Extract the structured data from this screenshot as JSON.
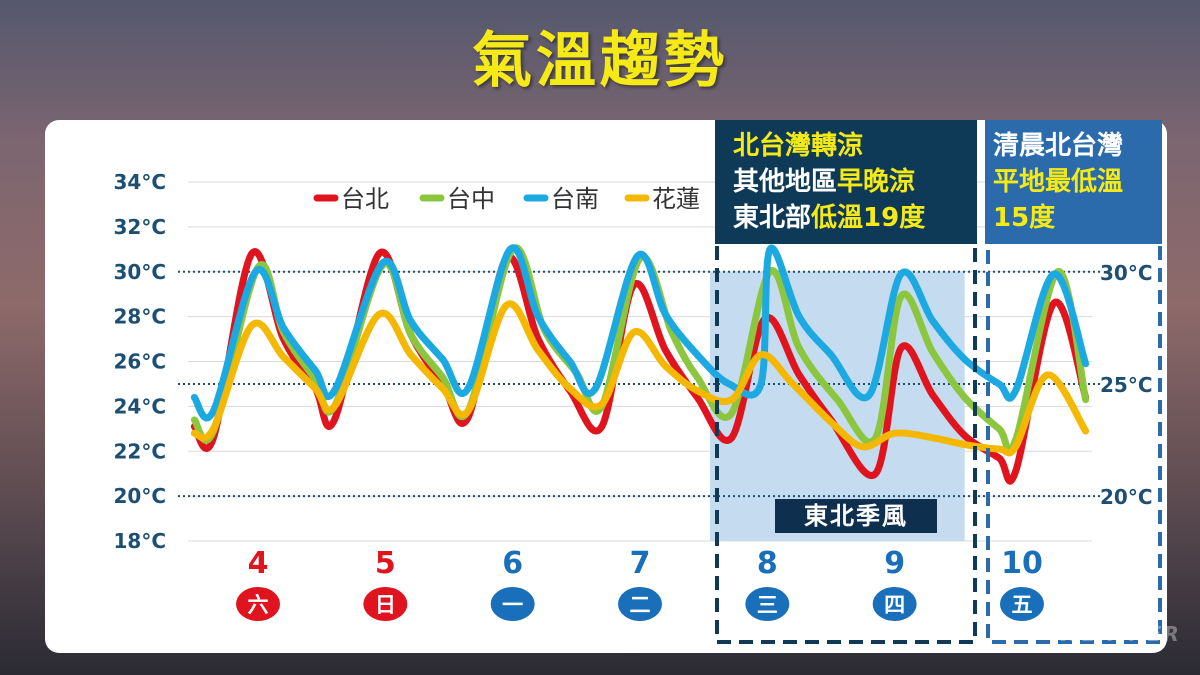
{
  "title": "氣溫趨勢",
  "chart_data": {
    "type": "line",
    "y_ticks": [
      "34°C",
      "32°C",
      "30°C",
      "28°C",
      "26°C",
      "24°C",
      "22°C",
      "20°C",
      "18°C"
    ],
    "ylim": [
      18,
      34
    ],
    "ref_lines": [
      {
        "value": 30,
        "label": "30°C"
      },
      {
        "value": 25,
        "label": "25°C"
      },
      {
        "value": 20,
        "label": "20°C"
      }
    ],
    "days": [
      {
        "date": "4",
        "weekday": "六",
        "weekend": true
      },
      {
        "date": "5",
        "weekday": "日",
        "weekend": true
      },
      {
        "date": "6",
        "weekday": "一",
        "weekend": false
      },
      {
        "date": "7",
        "weekday": "二",
        "weekend": false
      },
      {
        "date": "8",
        "weekday": "三",
        "weekend": false
      },
      {
        "date": "9",
        "weekday": "四",
        "weekend": false
      },
      {
        "date": "10",
        "weekday": "五",
        "weekend": false
      }
    ],
    "x_positions": [
      0,
      1,
      2,
      3,
      4,
      5,
      6
    ],
    "x_range": [
      -0.55,
      6.55
    ],
    "series": [
      {
        "name": "台北",
        "color": "#e0141e",
        "points": [
          [
            -0.5,
            23.1
          ],
          [
            -0.35,
            22.6
          ],
          [
            -0.05,
            30.8
          ],
          [
            0.2,
            27.0
          ],
          [
            0.45,
            24.8
          ],
          [
            0.6,
            23.4
          ],
          [
            0.95,
            30.8
          ],
          [
            1.2,
            27.2
          ],
          [
            1.45,
            25.0
          ],
          [
            1.65,
            23.5
          ],
          [
            1.95,
            30.6
          ],
          [
            2.2,
            27.0
          ],
          [
            2.45,
            24.7
          ],
          [
            2.7,
            23.1
          ],
          [
            2.95,
            29.4
          ],
          [
            3.2,
            26.5
          ],
          [
            3.45,
            24.4
          ],
          [
            3.72,
            22.6
          ],
          [
            3.98,
            27.9
          ],
          [
            4.25,
            25.4
          ],
          [
            4.5,
            23.4
          ],
          [
            4.85,
            21.0
          ],
          [
            5.05,
            26.6
          ],
          [
            5.3,
            24.5
          ],
          [
            5.55,
            22.7
          ],
          [
            5.82,
            21.7
          ],
          [
            5.95,
            21.1
          ],
          [
            6.25,
            28.6
          ],
          [
            6.5,
            24.4
          ]
        ]
      },
      {
        "name": "台中",
        "color": "#8cc63f",
        "points": [
          [
            -0.5,
            23.4
          ],
          [
            -0.35,
            22.9
          ],
          [
            0.0,
            30.2
          ],
          [
            0.2,
            27.3
          ],
          [
            0.45,
            25.2
          ],
          [
            0.6,
            24.0
          ],
          [
            0.98,
            30.3
          ],
          [
            1.2,
            27.2
          ],
          [
            1.45,
            25.3
          ],
          [
            1.65,
            23.8
          ],
          [
            2.0,
            31.0
          ],
          [
            2.25,
            27.4
          ],
          [
            2.5,
            25.5
          ],
          [
            2.7,
            24.0
          ],
          [
            3.0,
            30.6
          ],
          [
            3.25,
            27.3
          ],
          [
            3.45,
            25.3
          ],
          [
            3.72,
            23.7
          ],
          [
            4.02,
            30.0
          ],
          [
            4.25,
            26.6
          ],
          [
            4.55,
            24.3
          ],
          [
            4.85,
            22.6
          ],
          [
            5.05,
            28.9
          ],
          [
            5.3,
            26.4
          ],
          [
            5.55,
            24.4
          ],
          [
            5.82,
            23.0
          ],
          [
            5.95,
            22.5
          ],
          [
            6.28,
            30.0
          ],
          [
            6.5,
            24.3
          ]
        ]
      },
      {
        "name": "台南",
        "color": "#1ca9e1",
        "points": [
          [
            -0.5,
            24.4
          ],
          [
            -0.35,
            23.8
          ],
          [
            -0.02,
            30.0
          ],
          [
            0.2,
            27.5
          ],
          [
            0.45,
            25.6
          ],
          [
            0.6,
            24.7
          ],
          [
            0.98,
            30.4
          ],
          [
            1.2,
            27.8
          ],
          [
            1.45,
            26.1
          ],
          [
            1.65,
            24.8
          ],
          [
            1.98,
            31.0
          ],
          [
            2.2,
            28.0
          ],
          [
            2.45,
            26.0
          ],
          [
            2.65,
            24.8
          ],
          [
            2.98,
            30.7
          ],
          [
            3.2,
            28.1
          ],
          [
            3.45,
            26.3
          ],
          [
            3.7,
            25.0
          ],
          [
            3.95,
            25.0
          ],
          [
            4.02,
            31.0
          ],
          [
            4.25,
            28.0
          ],
          [
            4.5,
            26.3
          ],
          [
            4.8,
            24.5
          ],
          [
            5.05,
            29.9
          ],
          [
            5.3,
            27.8
          ],
          [
            5.55,
            26.1
          ],
          [
            5.82,
            25.0
          ],
          [
            5.95,
            24.7
          ],
          [
            6.25,
            29.9
          ],
          [
            6.5,
            25.9
          ]
        ]
      },
      {
        "name": "花蓮",
        "color": "#f5b800",
        "points": [
          [
            -0.5,
            22.8
          ],
          [
            -0.35,
            23.0
          ],
          [
            -0.05,
            27.6
          ],
          [
            0.2,
            26.2
          ],
          [
            0.45,
            24.8
          ],
          [
            0.6,
            24.0
          ],
          [
            0.95,
            28.1
          ],
          [
            1.2,
            26.3
          ],
          [
            1.45,
            24.8
          ],
          [
            1.65,
            23.8
          ],
          [
            1.95,
            28.5
          ],
          [
            2.2,
            26.5
          ],
          [
            2.45,
            24.8
          ],
          [
            2.7,
            24.1
          ],
          [
            2.95,
            27.3
          ],
          [
            3.2,
            25.8
          ],
          [
            3.45,
            24.7
          ],
          [
            3.72,
            24.3
          ],
          [
            3.95,
            26.3
          ],
          [
            4.2,
            25.0
          ],
          [
            4.5,
            23.3
          ],
          [
            4.75,
            22.2
          ],
          [
            5.0,
            22.8
          ],
          [
            5.3,
            22.6
          ],
          [
            5.55,
            22.3
          ],
          [
            5.82,
            22.1
          ],
          [
            5.95,
            22.2
          ],
          [
            6.2,
            25.4
          ],
          [
            6.5,
            22.9
          ]
        ]
      }
    ]
  },
  "info_box_1": {
    "line1": "北台灣轉涼",
    "line2_prefix": "其他地區",
    "line2_highlight": "早晚涼",
    "line3_prefix": "東北部",
    "line3_highlight": "低溫19度"
  },
  "info_box_2": {
    "line1": "清晨北台灣",
    "line2": "平地最低溫",
    "line3": "15度"
  },
  "monsoon_label": "東北季風",
  "watermark": "WEATHER",
  "colors": {
    "title": "#f5ea16",
    "axis_text": "#1d4f73",
    "weekend_marker": "#e0141e",
    "weekday_marker": "#1a6fba",
    "shade": "#c5dcf0",
    "box_dark": "#0f3a57",
    "box_blue": "#2b6bab"
  }
}
